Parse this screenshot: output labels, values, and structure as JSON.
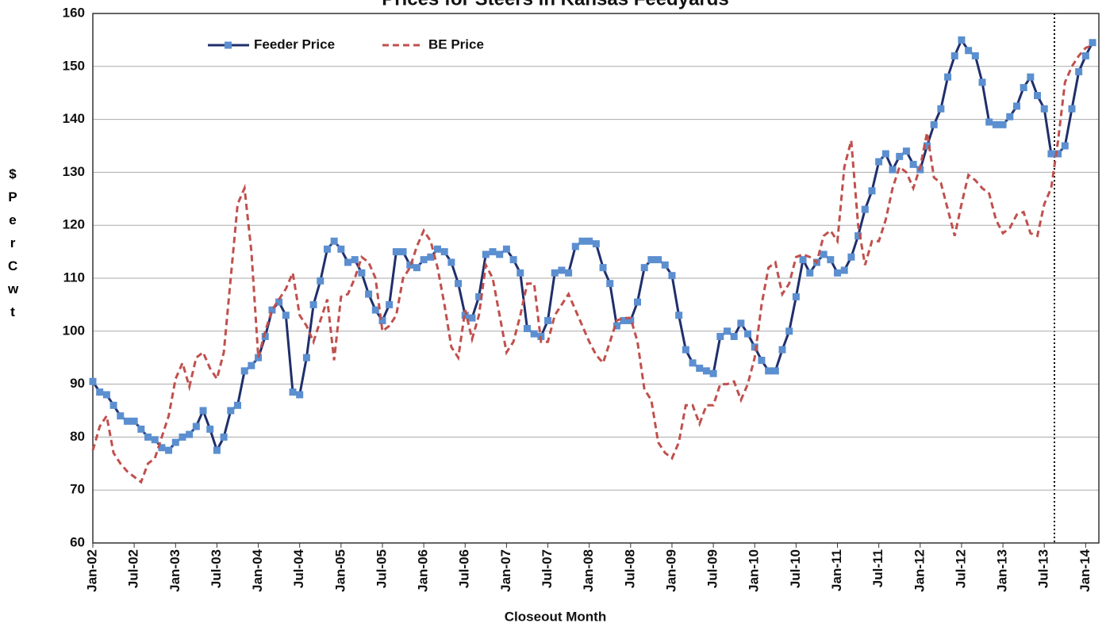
{
  "chart_data": {
    "type": "line",
    "title": "Prices for Steers in Kansas Feedyards",
    "xlabel": "Closeout Month",
    "ylabel": "$ Per Cwt",
    "categories": [
      "Jan-02",
      null,
      null,
      null,
      null,
      null,
      "Jul-02",
      null,
      null,
      null,
      null,
      null,
      "Jan-03",
      null,
      null,
      null,
      null,
      null,
      "Jul-03",
      null,
      null,
      null,
      null,
      null,
      "Jan-04",
      null,
      null,
      null,
      null,
      null,
      "Jul-04",
      null,
      null,
      null,
      null,
      null,
      "Jan-05",
      null,
      null,
      null,
      null,
      null,
      "Jul-05",
      null,
      null,
      null,
      null,
      null,
      "Jan-06",
      null,
      null,
      null,
      null,
      null,
      "Jul-06",
      null,
      null,
      null,
      null,
      null,
      "Jan-07",
      null,
      null,
      null,
      null,
      null,
      "Jul-07",
      null,
      null,
      null,
      null,
      null,
      "Jan-08",
      null,
      null,
      null,
      null,
      null,
      "Jul-08",
      null,
      null,
      null,
      null,
      null,
      "Jan-09",
      null,
      null,
      null,
      null,
      null,
      "Jul-09",
      null,
      null,
      null,
      null,
      null,
      "Jan-10",
      null,
      null,
      null,
      null,
      null,
      "Jul-10",
      null,
      null,
      null,
      null,
      null,
      "Jan-11",
      null,
      null,
      null,
      null,
      null,
      "Jul-11",
      null,
      null,
      null,
      null,
      null,
      "Jan-12",
      null,
      null,
      null,
      null,
      null,
      "Jul-12",
      null,
      null,
      null,
      null,
      null,
      "Jan-13",
      null,
      null,
      null,
      null,
      null,
      "Jul-13",
      null,
      null,
      null,
      null,
      null,
      "Jan-14",
      null
    ],
    "series": [
      {
        "name": "Feeder Price",
        "color": "#1f2f6b",
        "marker": "square",
        "marker_color": "#5b8fd0",
        "dash": false,
        "values": [
          90.5,
          88.5,
          88,
          86,
          84,
          83,
          83,
          81.5,
          80,
          79.5,
          78,
          77.5,
          79,
          80,
          80.5,
          82,
          85,
          81.5,
          77.5,
          80,
          85,
          86,
          92.5,
          93.5,
          95,
          99,
          104,
          105.5,
          103,
          88.5,
          88,
          95,
          105,
          109.5,
          115.5,
          117,
          115.5,
          113,
          113.5,
          111,
          107,
          104,
          102,
          105,
          115,
          115,
          112.5,
          112,
          113.5,
          114,
          115.5,
          115,
          113,
          109,
          103,
          102.5,
          106.5,
          114.5,
          115,
          114.5,
          115.5,
          113.5,
          111,
          100.5,
          99.5,
          99,
          102,
          111,
          111.5,
          111,
          116,
          117,
          117,
          116.5,
          112,
          109,
          101,
          102,
          102,
          105.5,
          112,
          113.5,
          113.5,
          112.5,
          110.5,
          103,
          96.5,
          94,
          93,
          92.5,
          92,
          99,
          100,
          99,
          101.5,
          99.5,
          97,
          94.5,
          92.5,
          92.5,
          96.5,
          100,
          106.5,
          113.5,
          111,
          113,
          114.5,
          113.5,
          111,
          111.5,
          114,
          118,
          123,
          126.5,
          132,
          133.5,
          130.5,
          133,
          134,
          131.5,
          130.5,
          135,
          139,
          142,
          148,
          152,
          155,
          153,
          152,
          147,
          139.5,
          139,
          139,
          140.5,
          142.5,
          146,
          148,
          144.5,
          142,
          133.5,
          133.5,
          135,
          142,
          149,
          152,
          154.5
        ]
      },
      {
        "name": "BE Price",
        "color": "#c0504d",
        "marker": "none",
        "dash": true,
        "values": [
          77.5,
          82,
          84,
          77,
          75,
          73.5,
          72.5,
          71.5,
          75,
          76,
          80,
          84,
          91,
          94,
          89.5,
          95,
          96,
          93,
          91,
          96,
          110,
          124,
          127,
          115,
          95,
          100,
          104,
          106,
          108,
          111,
          103,
          101,
          98,
          102,
          106,
          94.5,
          106.5,
          107,
          110,
          114,
          113,
          110,
          100,
          101,
          103,
          110,
          112,
          116,
          119,
          117,
          112,
          105,
          97,
          95,
          104,
          98.5,
          103,
          112.5,
          110,
          103,
          96,
          98,
          103,
          109,
          109,
          98,
          98,
          103,
          105,
          107,
          104,
          101,
          98,
          95.5,
          94,
          98,
          102,
          102.5,
          102.5,
          98,
          89,
          87,
          79,
          77,
          76,
          79,
          86,
          86,
          82.5,
          86,
          86,
          90,
          90,
          90.5,
          87,
          90,
          95,
          105,
          112,
          113,
          107,
          109,
          114,
          114.5,
          114,
          113,
          118,
          119,
          117,
          131,
          136,
          120,
          112.5,
          117,
          117,
          121,
          127,
          131,
          130,
          127,
          131,
          137.5,
          129,
          128,
          123,
          118,
          124,
          129.5,
          128.5,
          127,
          126,
          121,
          118.5,
          119.5,
          122,
          122.5,
          118.5,
          118,
          124,
          127,
          136,
          147,
          150,
          152,
          153.5,
          154
        ]
      }
    ],
    "ylim": [
      60,
      160
    ],
    "yticks": [
      60,
      70,
      80,
      90,
      100,
      110,
      120,
      130,
      140,
      150,
      160
    ],
    "grid": true,
    "legend": "top-left"
  }
}
